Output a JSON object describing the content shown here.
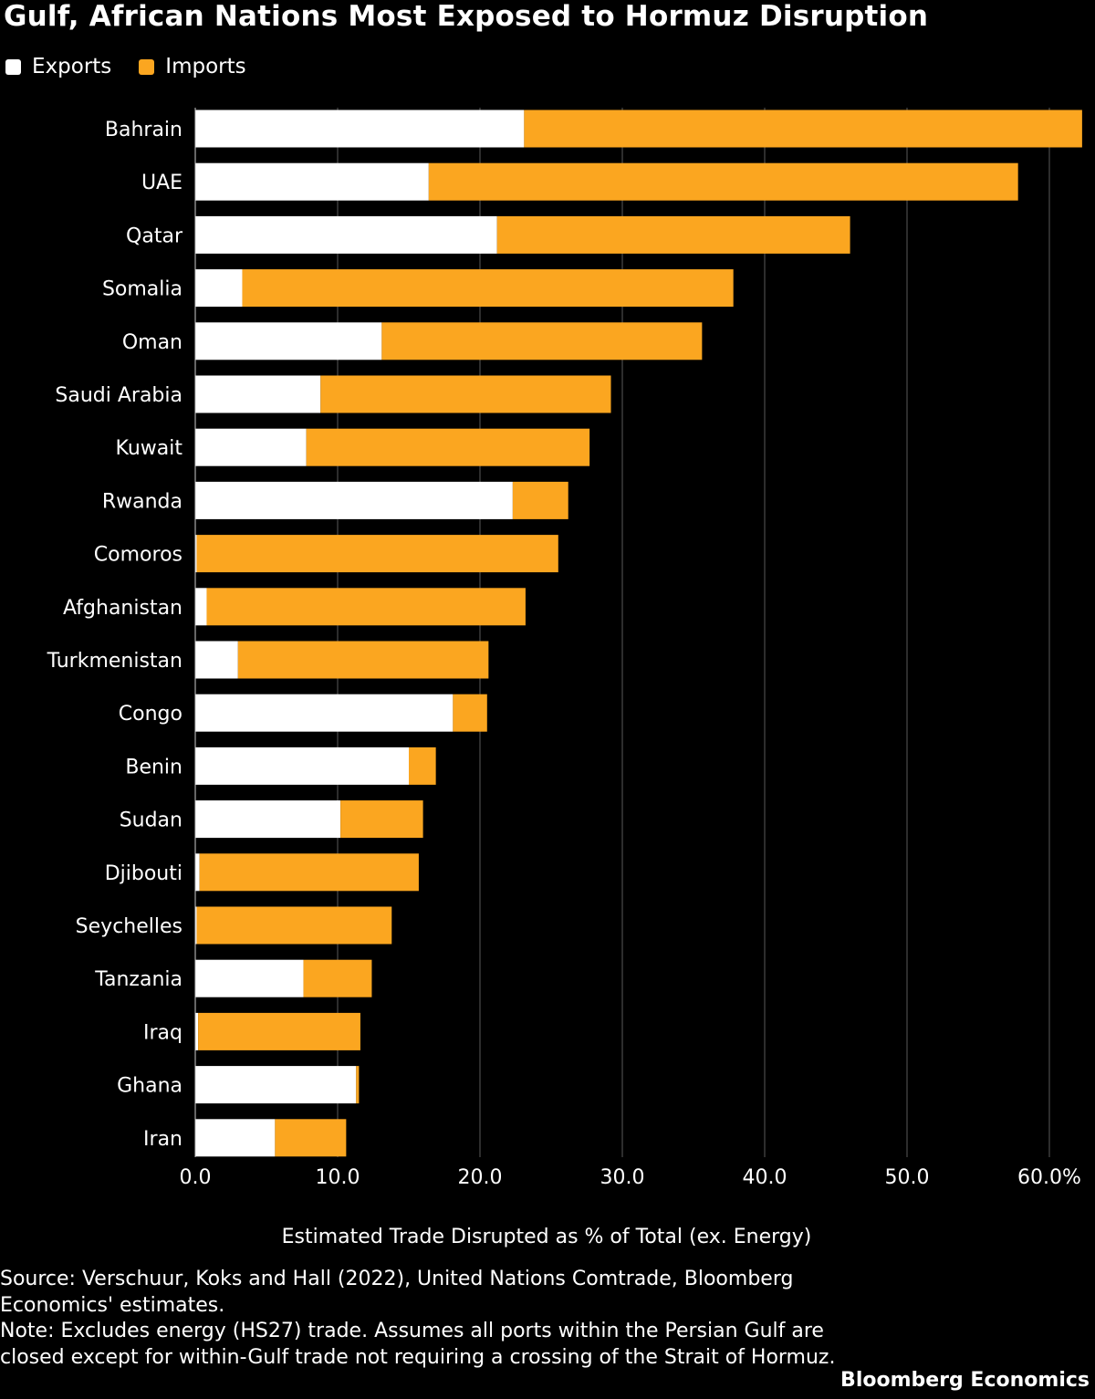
{
  "title": "Gulf, African Nations Most Exposed to Hormuz Disruption",
  "legend": [
    {
      "label": "Exports",
      "color": "#ffffff"
    },
    {
      "label": "Imports",
      "color": "#fba620"
    }
  ],
  "footer": {
    "source": "Source: Verschuur, Koks and Hall (2022), United Nations Comtrade, Bloomberg Economics' estimates.",
    "note": "Note: Excludes energy (HS27) trade. Assumes all ports within the Persian Gulf are closed except for within-Gulf trade not requiring a crossing of the Strait of Hormuz.",
    "brand": "Bloomberg Economics"
  },
  "chart_data": {
    "type": "bar",
    "orientation": "horizontal",
    "stacked": true,
    "title": "Gulf, African Nations Most Exposed to Hormuz Disruption",
    "xlabel": "Estimated Trade Disrupted as % of Total (ex. Energy)",
    "ylabel": "",
    "xlim": [
      0,
      62.5
    ],
    "xticks": [
      0,
      10,
      20,
      30,
      40,
      50,
      60
    ],
    "xtick_labels": [
      "0.0",
      "10.0",
      "20.0",
      "30.0",
      "40.0",
      "50.0",
      "60.0%"
    ],
    "grid": "vertical",
    "legend_position": "top-left",
    "categories": [
      "Bahrain",
      "UAE",
      "Qatar",
      "Somalia",
      "Oman",
      "Saudi Arabia",
      "Kuwait",
      "Rwanda",
      "Comoros",
      "Afghanistan",
      "Turkmenistan",
      "Congo",
      "Benin",
      "Sudan",
      "Djibouti",
      "Seychelles",
      "Tanzania",
      "Iraq",
      "Ghana",
      "Iran"
    ],
    "series": [
      {
        "name": "Exports",
        "color": "#ffffff",
        "values": [
          23.1,
          16.4,
          21.2,
          3.3,
          13.1,
          8.8,
          7.8,
          22.3,
          0.1,
          0.8,
          3.0,
          18.1,
          15.0,
          10.2,
          0.3,
          0.1,
          7.6,
          0.2,
          11.3,
          5.6
        ]
      },
      {
        "name": "Imports",
        "color": "#fba620",
        "values": [
          39.2,
          41.4,
          24.8,
          34.5,
          22.5,
          20.4,
          19.9,
          3.9,
          25.4,
          22.4,
          17.6,
          2.4,
          1.9,
          5.8,
          15.4,
          13.7,
          4.8,
          11.4,
          0.2,
          5.0
        ]
      }
    ]
  }
}
